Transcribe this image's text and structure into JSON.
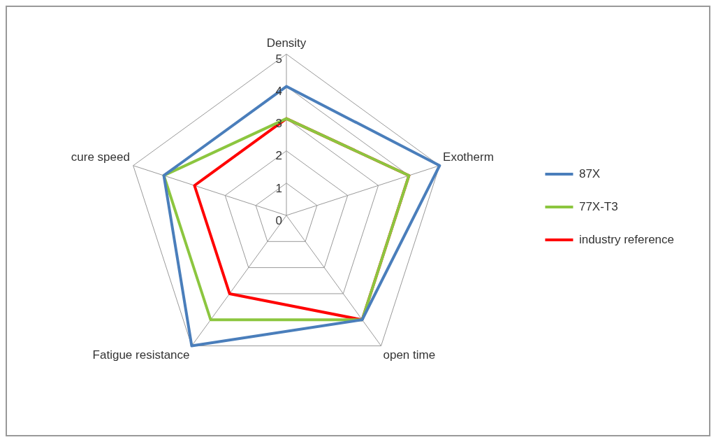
{
  "chart_data": {
    "type": "radar",
    "categories": [
      "Density",
      "Exotherm",
      "open time",
      "Fatigue resistance",
      "cure speed"
    ],
    "series": [
      {
        "name": "87X",
        "color": "#4a7ebb",
        "values": [
          4,
          5,
          4,
          5,
          4
        ]
      },
      {
        "name": "77X-T3",
        "color": "#8cc63f",
        "values": [
          3,
          4,
          4,
          4,
          4
        ]
      },
      {
        "name": "industry reference",
        "color": "#ff0000",
        "values": [
          3,
          4,
          4,
          3,
          3
        ]
      }
    ],
    "ylim": [
      0,
      5
    ],
    "yticks": [
      0,
      1,
      2,
      3,
      4,
      5
    ],
    "grid": true,
    "legend": "right",
    "marker": "none",
    "line_style": "solid"
  }
}
